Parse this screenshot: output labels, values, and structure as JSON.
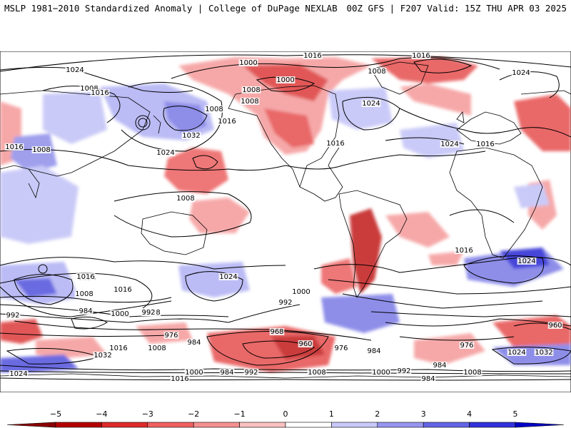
{
  "header": {
    "title_left": "MSLP 1981−2010 Standardized Anomaly | College of DuPage NEXLAB",
    "title_right": "00Z GFS | F207 Valid: 15Z THU APR 03 2025"
  },
  "isobar_labels": [
    "1024",
    "1016",
    "1008",
    "1000",
    "1008",
    "1016",
    "1024",
    "1008",
    "1032",
    "1024",
    "1016",
    "1008",
    "1016",
    "1016",
    "1024",
    "1008",
    "1008",
    "1000",
    "1024",
    "1024",
    "1016",
    "1008",
    "1016",
    "1008",
    "1008",
    "1016",
    "1024",
    "1016",
    "992",
    "984",
    "1000",
    "992",
    "976",
    "984",
    "968",
    "960",
    "976",
    "984",
    "1000",
    "992",
    "1008",
    "1016",
    "1032",
    "1024",
    "1000",
    "984",
    "992",
    "1008",
    "1000",
    "992",
    "984",
    "1016",
    "1016",
    "1024",
    "1008",
    "984",
    "976",
    "960",
    "1024",
    "1032"
  ],
  "colorbar": {
    "tick_labels": [
      "−5",
      "−4",
      "−3",
      "−2",
      "−1",
      "0",
      "1",
      "2",
      "3",
      "4",
      "5"
    ],
    "colors": [
      "#b40000",
      "#de2a2a",
      "#f06060",
      "#f59090",
      "#fac0c0",
      "#ffffff",
      "#c8c8fa",
      "#9696f0",
      "#6464e6",
      "#3232dc",
      "#0000c8"
    ]
  },
  "colors": {
    "neg_strong": "#d63a3a",
    "neg_light": "#f5a0a0",
    "pos_strong": "#3a3ad6",
    "pos_light": "#b4b4f5",
    "contour": "#000000",
    "coast": "#000000"
  }
}
